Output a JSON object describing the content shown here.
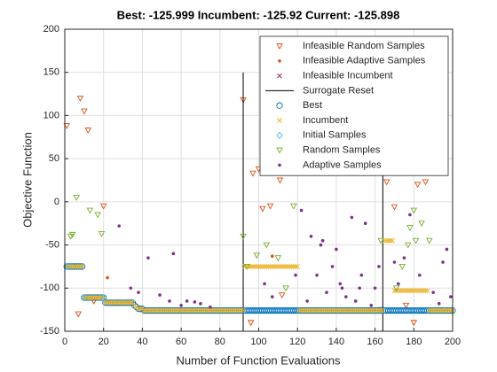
{
  "chart_data": {
    "type": "scatter",
    "title": "Best: -125.999 Incumbent: -125.92 Current: -125.898",
    "x_label": "Number of Function Evaluations",
    "y_label": "Objective Function",
    "xlim": [
      0,
      200
    ],
    "ylim": [
      -150,
      200
    ],
    "xticks": [
      0,
      20,
      40,
      60,
      80,
      100,
      120,
      140,
      160,
      180,
      200
    ],
    "yticks": [
      -150,
      -100,
      -50,
      0,
      50,
      100,
      150,
      200
    ],
    "grid": true,
    "legend": "northeast",
    "x": [
      1,
      2,
      3,
      4,
      5,
      6,
      7,
      8,
      9,
      10,
      11,
      12,
      13,
      14,
      15,
      16,
      17,
      18,
      19,
      20,
      21,
      22,
      23,
      24,
      25,
      26,
      27,
      28,
      29,
      30,
      31,
      32,
      33,
      34,
      35,
      36,
      37,
      38,
      39,
      40,
      41,
      42,
      43,
      44,
      45,
      46,
      47,
      48,
      49,
      50,
      51,
      52,
      53,
      54,
      55,
      56,
      57,
      58,
      59,
      60,
      61,
      62,
      63,
      64,
      65,
      66,
      67,
      68,
      69,
      70,
      71,
      72,
      73,
      74,
      75,
      76,
      77,
      78,
      79,
      80,
      81,
      82,
      83,
      84,
      85,
      86,
      87,
      88,
      89,
      90,
      91,
      92,
      93,
      94,
      95,
      96,
      97,
      98,
      99,
      100,
      101,
      102,
      103,
      104,
      105,
      106,
      107,
      108,
      109,
      110,
      111,
      112,
      113,
      114,
      115,
      116,
      117,
      118,
      119,
      120,
      121,
      122,
      123,
      124,
      125,
      126,
      127,
      128,
      129,
      130,
      131,
      132,
      133,
      134,
      135,
      136,
      137,
      138,
      139,
      140,
      141,
      142,
      143,
      144,
      145,
      146,
      147,
      148,
      149,
      150,
      151,
      152,
      153,
      154,
      155,
      156,
      157,
      158,
      159,
      160,
      161,
      162,
      163,
      164,
      165,
      166,
      167,
      168,
      169,
      170,
      171,
      172,
      173,
      174,
      175,
      176,
      177,
      178,
      179,
      180,
      181,
      182,
      183,
      184,
      185,
      186,
      187,
      188,
      189,
      190,
      191,
      192,
      193,
      194,
      195,
      196,
      197,
      198,
      199,
      200
    ],
    "series": [
      {
        "name": "Infeasible Random Samples",
        "color": "#D95319",
        "marker": "v",
        "x": [
          1,
          7,
          8,
          10,
          12,
          15,
          20,
          92,
          96,
          97,
          100,
          102,
          106,
          111,
          112,
          163,
          166,
          170,
          176,
          180,
          182,
          186
        ],
        "values": [
          88,
          -130,
          120,
          105,
          83,
          -115,
          -5,
          118,
          -140,
          33,
          38,
          -8,
          -5,
          25,
          -108,
          -125,
          23,
          -6,
          -120,
          -140,
          20,
          23
        ]
      },
      {
        "name": "Infeasible Adaptive Samples",
        "color": "#D95319",
        "marker": ".",
        "x": [
          22,
          107
        ],
        "values": [
          -88,
          -63
        ]
      },
      {
        "name": "Infeasible Incumbent",
        "color": "#A2142F",
        "marker": "x",
        "x": [],
        "values": []
      },
      {
        "name": "Surrogate Reset",
        "color": "#000000",
        "marker": "vline",
        "x": [
          92,
          164
        ],
        "values": [
          150,
          150
        ]
      },
      {
        "name": "Best",
        "color": "#0072BD",
        "marker": "o",
        "values": [
          -75,
          -75,
          -75,
          -75,
          -75,
          -75,
          -75,
          -75,
          -75,
          -111,
          -111,
          -111,
          -111,
          -111,
          -111,
          -111,
          -111,
          -111,
          -111,
          -111,
          -117,
          -117,
          -117,
          -117,
          -117,
          -117,
          -117,
          -117,
          -117,
          -117,
          -117,
          -117,
          -117,
          -117,
          -117,
          -120,
          -122,
          -124,
          -124,
          -124,
          -126,
          -126,
          -126,
          -126,
          -126,
          -126,
          -126,
          -126,
          -126,
          -126,
          -126,
          -126,
          -126,
          -126,
          -126,
          -126,
          -126,
          -126,
          -126,
          -126,
          -126,
          -126,
          -126,
          -126,
          -126,
          -126,
          -126,
          -126,
          -126,
          -126,
          -126,
          -126,
          -126,
          -126,
          -126,
          -126,
          -126,
          -126,
          -126,
          -126,
          -126,
          -126,
          -126,
          -126,
          -126,
          -126,
          -126,
          -126,
          -126,
          -126,
          -126,
          -126,
          -126,
          -126,
          -126,
          -126,
          -126,
          -126,
          -126,
          -126,
          -126,
          -126,
          -126,
          -126,
          -126,
          -126,
          -126,
          -126,
          -126,
          -126,
          -126,
          -126,
          -126,
          -126,
          -126,
          -126,
          -126,
          -126,
          -126,
          -126,
          -126,
          -126,
          -126,
          -126,
          -126,
          -126,
          -126,
          -126,
          -126,
          -126,
          -126,
          -126,
          -126,
          -126,
          -126,
          -126,
          -126,
          -126,
          -126,
          -126,
          -126,
          -126,
          -126,
          -126,
          -126,
          -126,
          -126,
          -126,
          -126,
          -126,
          -126,
          -126,
          -126,
          -126,
          -126,
          -126,
          -126,
          -126,
          -126,
          -126,
          -126,
          -126,
          -126,
          -126,
          -126,
          -126,
          -126,
          -126,
          -126,
          -126,
          -126,
          -126,
          -126,
          -126,
          -126,
          -126,
          -126,
          -126,
          -126,
          -126,
          -126,
          -126,
          -126,
          -126,
          -126,
          -126,
          -126,
          -126,
          -126,
          -126,
          -126,
          -126,
          -126,
          -126,
          -126,
          -126,
          -126,
          -126,
          -126,
          -126
        ]
      },
      {
        "name": "Incumbent",
        "color": "#EDB120",
        "marker": "x",
        "values": [
          -75,
          -75,
          -75,
          -75,
          -75,
          -75,
          -75,
          -75,
          -75,
          -111,
          -111,
          -111,
          -111,
          -111,
          -111,
          -111,
          -111,
          -111,
          -111,
          -111,
          -117,
          -117,
          -117,
          -117,
          -117,
          -117,
          -117,
          -117,
          -117,
          -117,
          -117,
          -117,
          -117,
          -117,
          -117,
          -120,
          -122,
          -124,
          -124,
          -124,
          -126,
          -126,
          -126,
          -126,
          -126,
          -126,
          -126,
          -126,
          -126,
          -126,
          -126,
          -126,
          -126,
          -126,
          -126,
          -126,
          -126,
          -126,
          -126,
          -126,
          -126,
          -126,
          -126,
          -126,
          -126,
          -126,
          -126,
          -126,
          -126,
          -126,
          -126,
          -126,
          -126,
          -126,
          -126,
          -126,
          -126,
          -126,
          -126,
          -126,
          -126,
          -126,
          -126,
          -126,
          -126,
          -126,
          -126,
          -126,
          -126,
          -126,
          -126,
          -126,
          -75,
          -75,
          -75,
          -75,
          -75,
          -75,
          -75,
          -75,
          -75,
          -75,
          -75,
          -75,
          -75,
          -75,
          -75,
          -75,
          -75,
          -75,
          -75,
          -75,
          -75,
          -75,
          -75,
          -75,
          -75,
          -75,
          -75,
          -75,
          -126,
          -126,
          -126,
          -126,
          -126,
          -126,
          -126,
          -126,
          -126,
          -126,
          -126,
          -126,
          -126,
          -126,
          -126,
          -126,
          -126,
          -126,
          -126,
          -126,
          -126,
          -126,
          -126,
          -126,
          -126,
          -126,
          -126,
          -126,
          -126,
          -126,
          -126,
          -126,
          -126,
          -126,
          -126,
          -126,
          -126,
          -126,
          -126,
          -126,
          -126,
          -126,
          -126,
          -126,
          -45,
          -45,
          -45,
          -45,
          -45,
          -103,
          -103,
          -103,
          -103,
          -103,
          -103,
          -103,
          -103,
          -103,
          -103,
          -103,
          -103,
          -103,
          -103,
          -103,
          -103,
          -103,
          -103,
          -126,
          -126,
          -126,
          -126,
          -126,
          -126,
          -126,
          -126,
          -126,
          -126,
          -126,
          -126,
          -126
        ]
      },
      {
        "name": "Initial Samples",
        "color": "#4DBEEE",
        "marker": "d",
        "x": [
          1,
          10,
          20
        ],
        "values": [
          -75,
          -111,
          -111
        ]
      },
      {
        "name": "Random Samples",
        "color": "#77AC30",
        "marker": "v",
        "x": [
          3,
          4,
          6,
          13,
          17,
          19,
          92,
          94,
          99,
          104,
          110,
          114,
          118,
          163,
          171,
          174,
          177,
          178,
          180,
          181,
          184,
          188
        ],
        "values": [
          -40,
          -38,
          5,
          -10,
          -15,
          -37,
          -40,
          -75,
          -62,
          -50,
          -65,
          -100,
          -5,
          -45,
          -100,
          -75,
          -50,
          -30,
          -10,
          -45,
          -25,
          -45
        ]
      },
      {
        "name": "Adaptive Samples",
        "color": "#7E2F8E",
        "marker": ".",
        "x": [
          28,
          34,
          38,
          43,
          49,
          54,
          56,
          60,
          63,
          67,
          70,
          75,
          103,
          107,
          119,
          122,
          125,
          127,
          130,
          132,
          133,
          135,
          138,
          140,
          142,
          143,
          145,
          148,
          150,
          152,
          153,
          155,
          158,
          160,
          162,
          170,
          172,
          175,
          178,
          183,
          190,
          193,
          195,
          197,
          199
        ],
        "values": [
          -28,
          -100,
          -105,
          -65,
          -108,
          -115,
          -60,
          -120,
          -115,
          -116,
          -118,
          -122,
          -95,
          -110,
          -85,
          -10,
          -115,
          -40,
          -85,
          -50,
          -45,
          -105,
          -75,
          -55,
          -95,
          -100,
          -110,
          -18,
          -115,
          -100,
          -85,
          -25,
          -120,
          -100,
          -75,
          -70,
          -95,
          -65,
          -15,
          -85,
          -105,
          -118,
          -70,
          -55,
          -110
        ]
      }
    ]
  }
}
